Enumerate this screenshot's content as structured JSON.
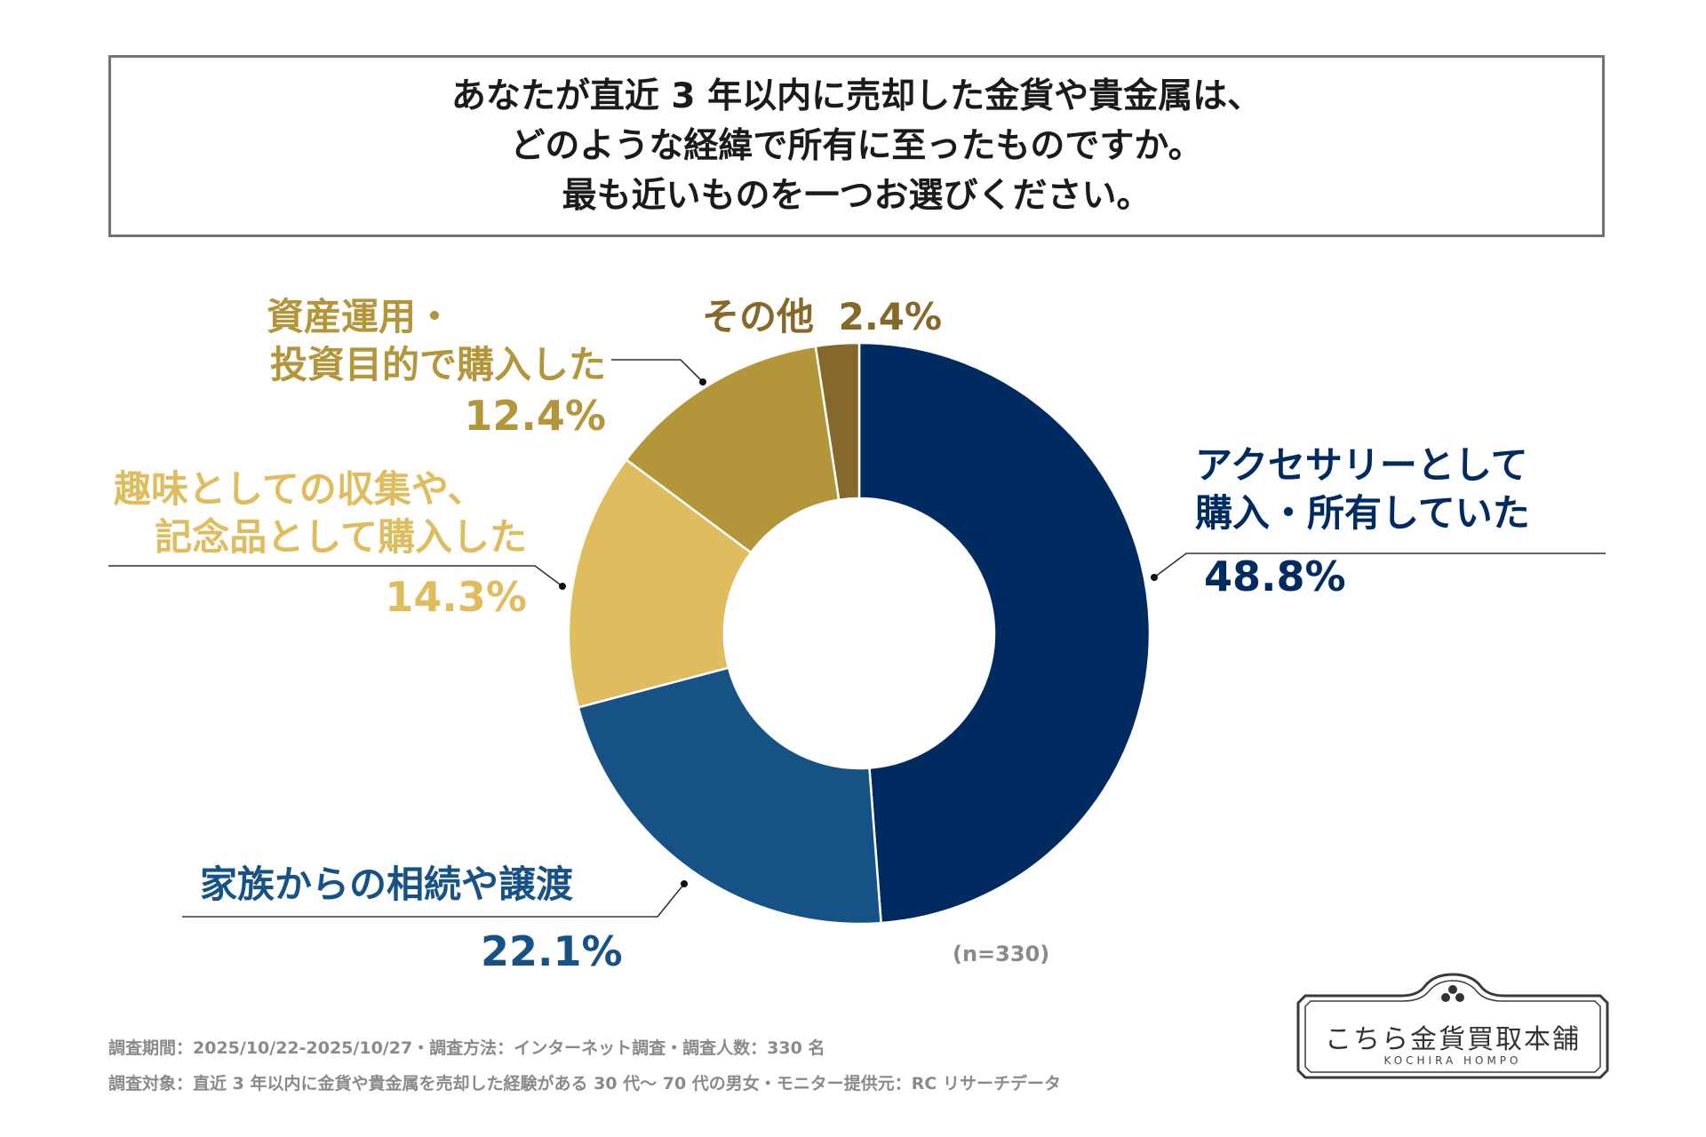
{
  "title": {
    "line1": "あなたが直近 3 年以内に売却した金貨や貴金属は、",
    "line2": "どのような経緯で所有に至ったものですか。",
    "line3": "最も近いものを一つお選びください。"
  },
  "chart_data": {
    "type": "pie",
    "variant": "donut",
    "start": "12 o'clock, clockwise",
    "slices": [
      {
        "key": "accessory",
        "line1": "アクセサリーとして",
        "line2": "購入・所有していた",
        "value": 48.8,
        "label": "48.8%",
        "color": "#002b60"
      },
      {
        "key": "inheritance",
        "line1": "家族からの相続や譲渡",
        "line2": "",
        "value": 22.1,
        "label": "22.1%",
        "color": "#175287"
      },
      {
        "key": "hobby",
        "line1": "趣味としての収集や、",
        "line2": "記念品として購入した",
        "value": 14.3,
        "label": "14.3%",
        "color": "#dfbd5e"
      },
      {
        "key": "investment",
        "line1": "資産運用・",
        "line2": "投資目的で購入した",
        "value": 12.4,
        "label": "12.4%",
        "color": "#b3953a"
      },
      {
        "key": "other",
        "line1": "その他",
        "line2": "",
        "value": 2.4,
        "label": "2.4%",
        "color": "#85692a"
      }
    ],
    "sample_size": "(n=330)"
  },
  "label_colors": {
    "accessory": "#002b60",
    "inheritance": "#175287",
    "hobby": "#dfbd5e",
    "investment": "#b3953a",
    "other": "#85692a"
  },
  "footnotes": {
    "line1": "調査期間：2025/10/22-2025/10/27・調査方法：インターネット調査・調査人数：330 名",
    "line2": "調査対象：直近 3 年以内に金貨や貴金属を売却した経験がある 30 代～ 70 代の男女・モニター提供元：RC リサーチデータ"
  },
  "logo": {
    "name": "こちら金貨買取本舗",
    "sub": "KOCHIRA HOMPO"
  }
}
